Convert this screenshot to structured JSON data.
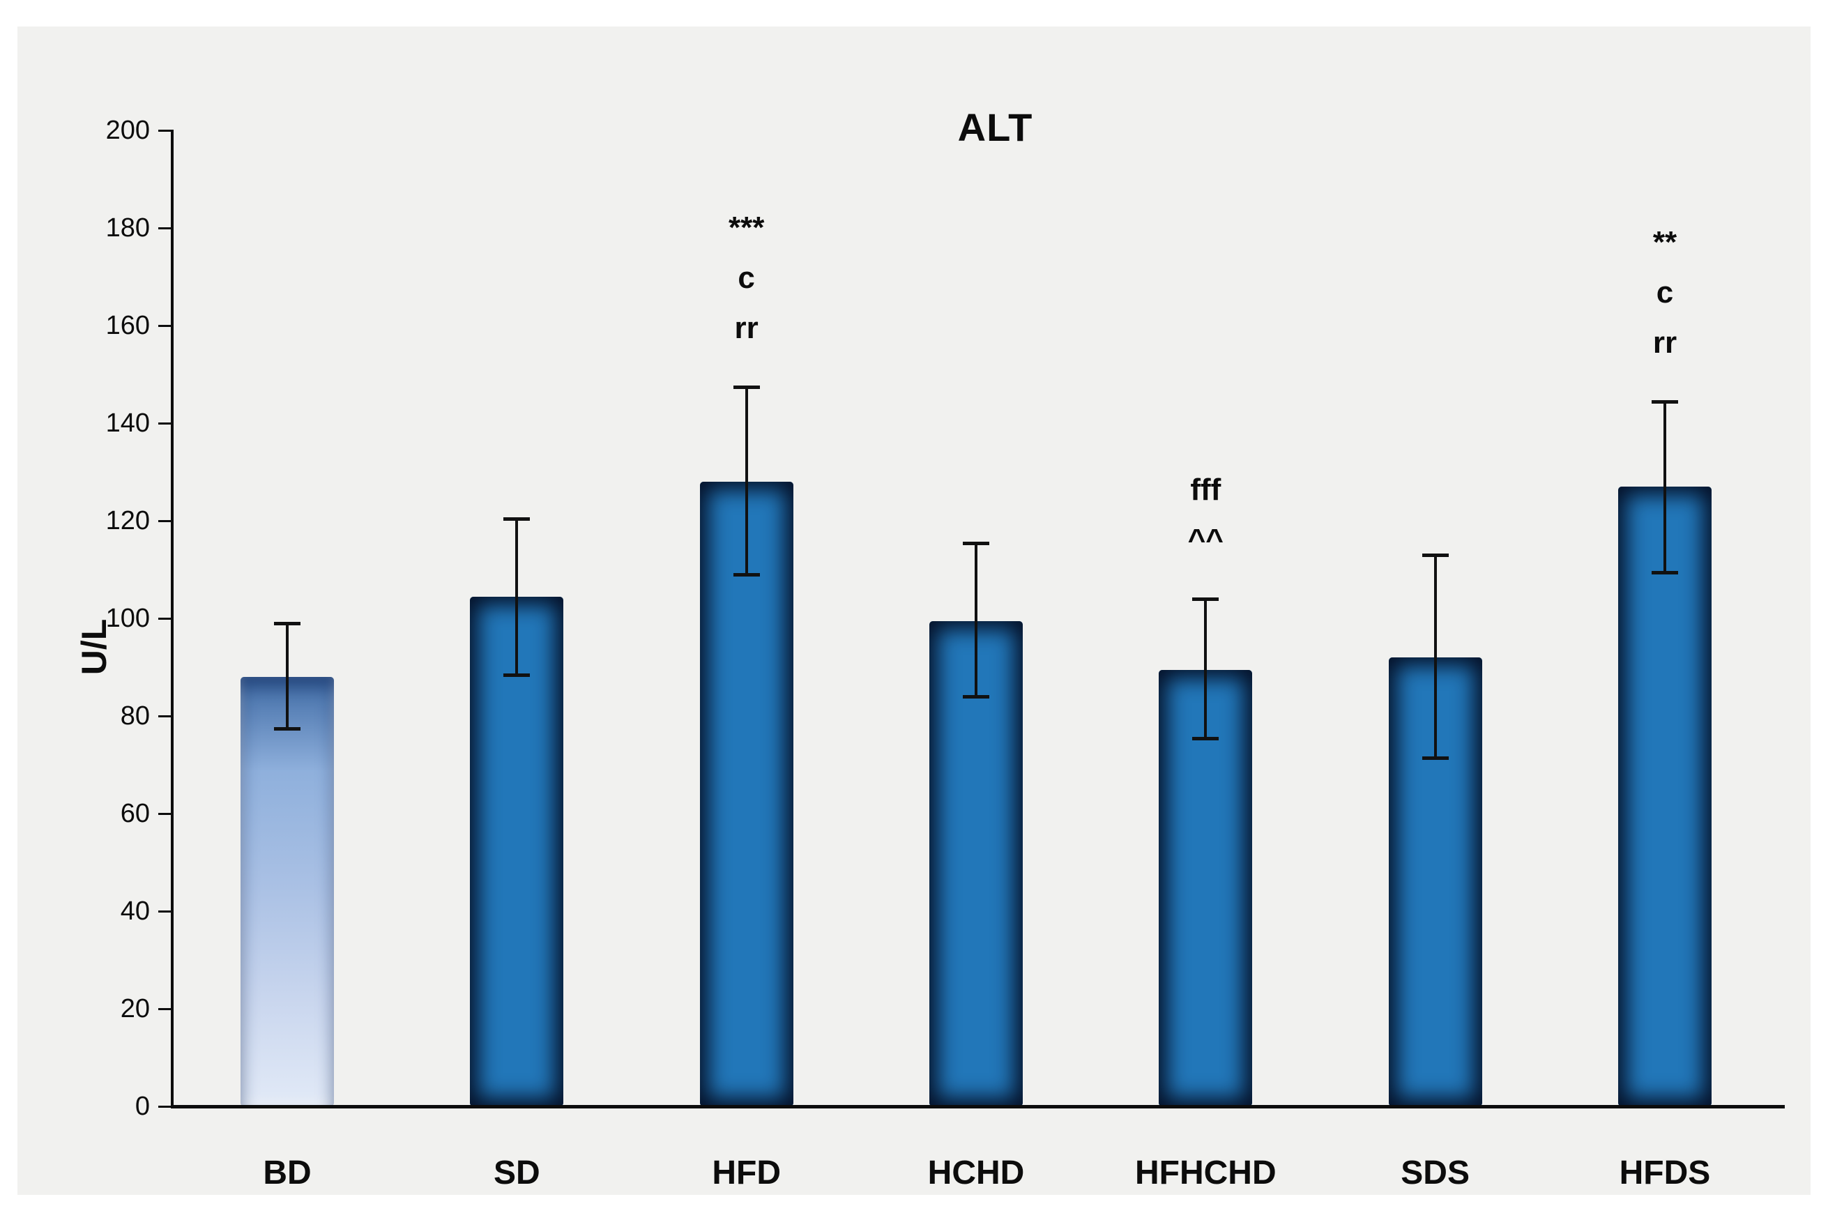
{
  "chart_data": {
    "type": "bar",
    "title": "ALT",
    "ylabel": "U/L",
    "xlabel": "",
    "ylim": [
      0,
      200
    ],
    "ytick_interval": 20,
    "yticks": [
      0,
      20,
      40,
      60,
      80,
      100,
      120,
      140,
      160,
      180,
      200
    ],
    "categories": [
      "BD",
      "SD",
      "HFD",
      "HCHD",
      "HFHCHD",
      "SDS",
      "HFDS"
    ],
    "values": [
      88,
      104.5,
      128,
      99.5,
      89.5,
      92,
      127
    ],
    "error_upper": [
      99,
      120.5,
      147.5,
      115.5,
      104,
      113,
      144.5
    ],
    "error_lower": [
      77.5,
      88.5,
      109,
      84,
      75.5,
      71.5,
      109.5
    ],
    "bar_styles": [
      "light",
      "solid",
      "solid",
      "solid",
      "solid",
      "solid",
      "solid"
    ],
    "annotations": [
      {
        "category": "HFD",
        "lines": [
          "***",
          "c",
          "rr"
        ]
      },
      {
        "category": "HFHCHD",
        "lines": [
          "fff",
          "^^"
        ]
      },
      {
        "category": "HFDS",
        "lines": [
          "**",
          "c",
          "rr"
        ]
      }
    ],
    "grid": false,
    "legend": false
  },
  "colors": {
    "background": "#ffffff",
    "panel": "#f1f1ef",
    "axis": "#0d0d0d",
    "bar_fill": "#2277b9",
    "bar_edge_shadow": "#051128",
    "bd_gradient_top": "#3f6ba5",
    "bd_gradient_mid": "#8fb0dc",
    "bd_gradient_bottom": "#e2eaf7",
    "error_bar": "#111111",
    "text": "#000000"
  }
}
